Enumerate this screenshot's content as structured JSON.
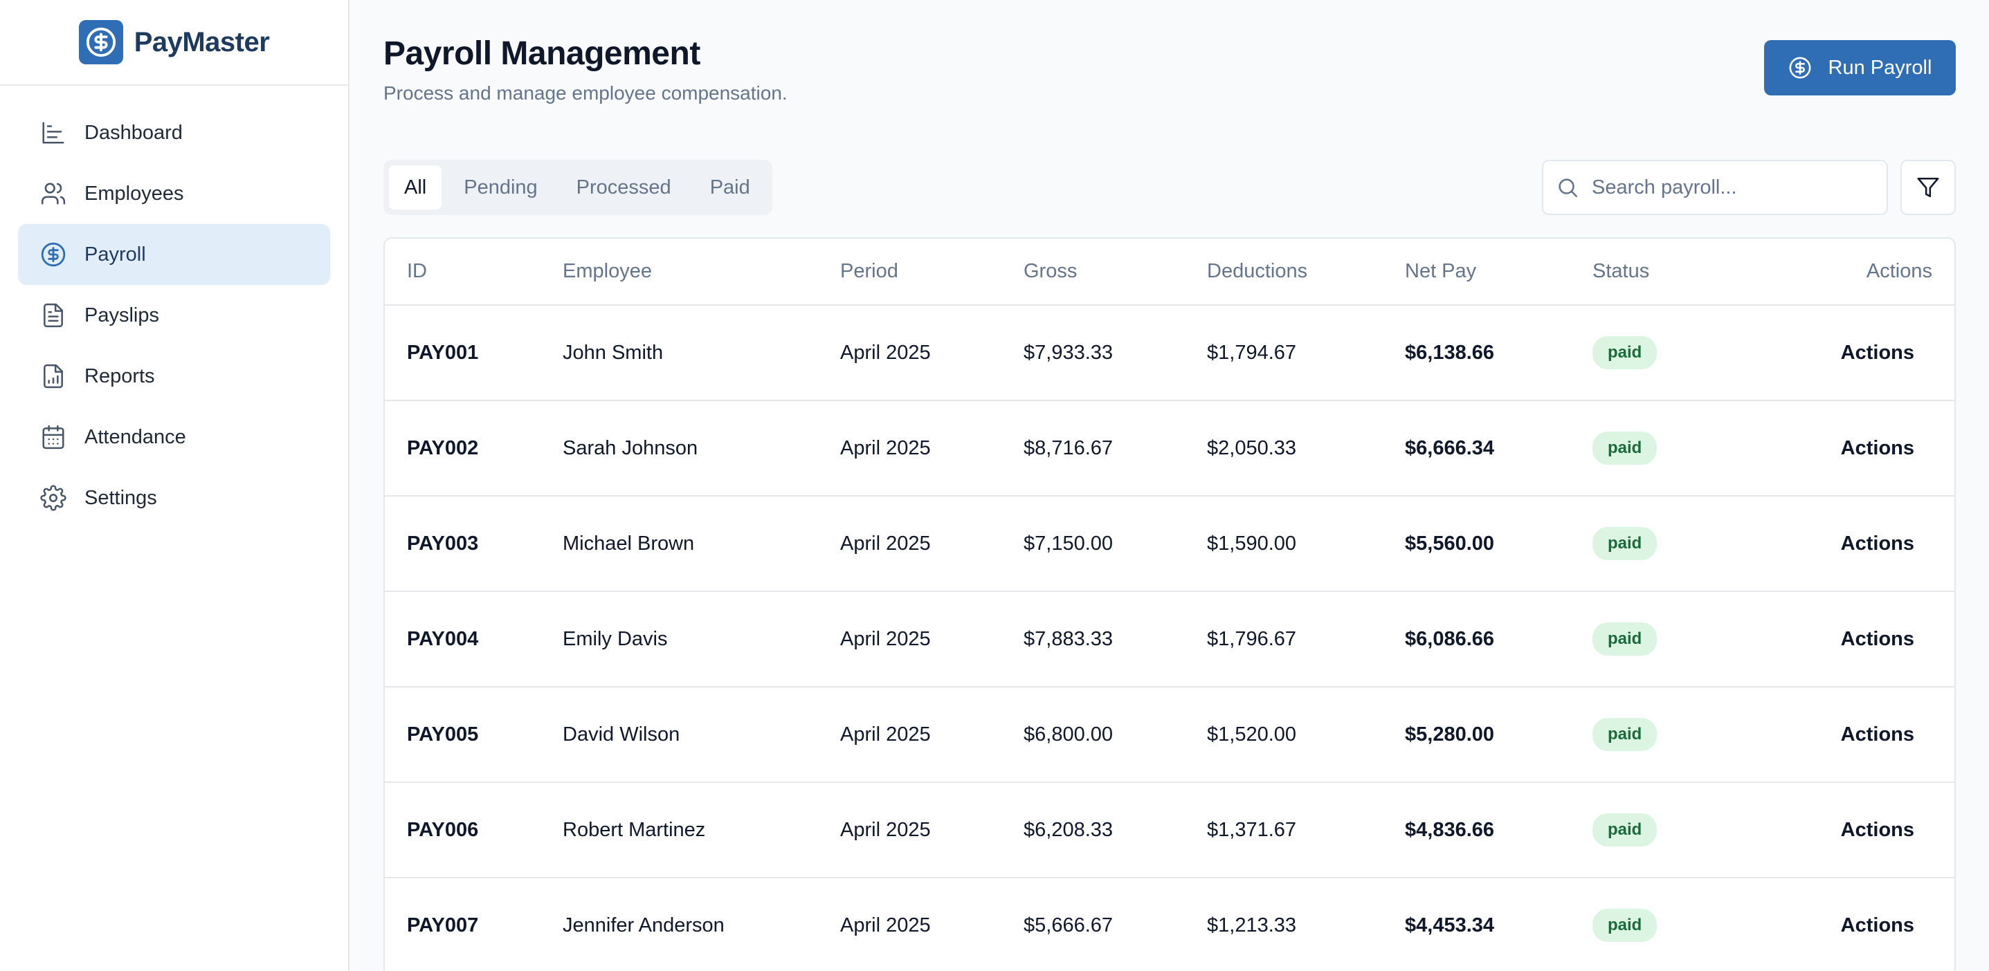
{
  "brand": {
    "name": "PayMaster"
  },
  "sidebar": {
    "items": [
      {
        "label": "Dashboard",
        "icon": "bar-chart-icon"
      },
      {
        "label": "Employees",
        "icon": "users-icon"
      },
      {
        "label": "Payroll",
        "icon": "dollar-circle-icon",
        "active": true
      },
      {
        "label": "Payslips",
        "icon": "document-icon"
      },
      {
        "label": "Reports",
        "icon": "report-icon"
      },
      {
        "label": "Attendance",
        "icon": "calendar-icon"
      },
      {
        "label": "Settings",
        "icon": "gear-icon"
      }
    ]
  },
  "header": {
    "title": "Payroll Management",
    "subtitle": "Process and manage employee compensation.",
    "run_payroll_label": "Run Payroll"
  },
  "tabs": [
    {
      "label": "All",
      "active": true
    },
    {
      "label": "Pending"
    },
    {
      "label": "Processed"
    },
    {
      "label": "Paid"
    }
  ],
  "search": {
    "placeholder": "Search payroll...",
    "value": ""
  },
  "table": {
    "columns": [
      "ID",
      "Employee",
      "Period",
      "Gross",
      "Deductions",
      "Net Pay",
      "Status",
      "Actions"
    ],
    "rows": [
      {
        "id": "PAY001",
        "employee": "John Smith",
        "period": "April 2025",
        "gross": "$7,933.33",
        "deductions": "$1,794.67",
        "net": "$6,138.66",
        "status": "paid",
        "actions": "Actions"
      },
      {
        "id": "PAY002",
        "employee": "Sarah Johnson",
        "period": "April 2025",
        "gross": "$8,716.67",
        "deductions": "$2,050.33",
        "net": "$6,666.34",
        "status": "paid",
        "actions": "Actions"
      },
      {
        "id": "PAY003",
        "employee": "Michael Brown",
        "period": "April 2025",
        "gross": "$7,150.00",
        "deductions": "$1,590.00",
        "net": "$5,560.00",
        "status": "paid",
        "actions": "Actions"
      },
      {
        "id": "PAY004",
        "employee": "Emily Davis",
        "period": "April 2025",
        "gross": "$7,883.33",
        "deductions": "$1,796.67",
        "net": "$6,086.66",
        "status": "paid",
        "actions": "Actions"
      },
      {
        "id": "PAY005",
        "employee": "David Wilson",
        "period": "April 2025",
        "gross": "$6,800.00",
        "deductions": "$1,520.00",
        "net": "$5,280.00",
        "status": "paid",
        "actions": "Actions"
      },
      {
        "id": "PAY006",
        "employee": "Robert Martinez",
        "period": "April 2025",
        "gross": "$6,208.33",
        "deductions": "$1,371.67",
        "net": "$4,836.66",
        "status": "paid",
        "actions": "Actions"
      },
      {
        "id": "PAY007",
        "employee": "Jennifer Anderson",
        "period": "April 2025",
        "gross": "$5,666.67",
        "deductions": "$1,213.33",
        "net": "$4,453.34",
        "status": "paid",
        "actions": "Actions"
      }
    ]
  },
  "colors": {
    "accent": "#2f6db5",
    "active_nav_bg": "#e2edfa",
    "badge_bg": "#dcf5e3",
    "badge_text": "#1a6b3b"
  }
}
